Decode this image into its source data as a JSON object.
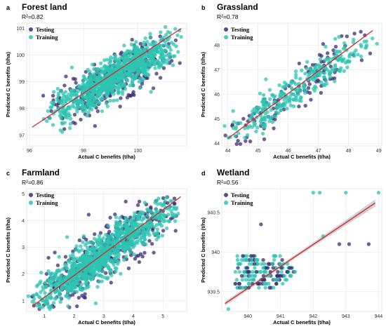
{
  "colors": {
    "testing": "#3b2e73",
    "training": "#2ec4b2",
    "fit_line": "#d62728",
    "band": "#a9a9a9",
    "grid": "#e6e6e6"
  },
  "legend": [
    "Testing",
    "Training"
  ],
  "chart_data": [
    {
      "type": "scatter",
      "panel": "a",
      "title": "Forest land",
      "r2": "R²=0.82",
      "xlabel": "Actual C benefits (t/ha)",
      "ylabel": "Predicted C benefits (t/ha)",
      "xlim": [
        95.9,
        101.8
      ],
      "ylim": [
        96.6,
        101.2
      ],
      "xticks": [
        96,
        98,
        100
      ],
      "yticks": [
        97,
        98,
        99,
        100,
        101
      ],
      "fit": [
        [
          96.1,
          97.3
        ],
        [
          101.6,
          101.0
        ]
      ],
      "center": [
        [
          97.0,
          97.9
        ],
        [
          101.2,
          100.4
        ]
      ],
      "spread": 0.38,
      "n_train": 900,
      "n_test": 320,
      "series": [
        {
          "name": "Testing"
        },
        {
          "name": "Training"
        }
      ]
    },
    {
      "type": "scatter",
      "panel": "b",
      "title": "Grassland",
      "r2": "R²=0.78",
      "xlabel": "Actual C benefits (t/ha)",
      "ylabel": "Predicted C benefits (t/ha)",
      "xlim": [
        43.8,
        49.1
      ],
      "ylim": [
        43.9,
        48.9
      ],
      "xticks": [
        44,
        45,
        46,
        47,
        48,
        49
      ],
      "yticks": [
        44,
        45,
        46,
        47,
        48
      ],
      "fit": [
        [
          44.0,
          44.2
        ],
        [
          48.8,
          48.6
        ]
      ],
      "center": [
        [
          44.0,
          44.2
        ],
        [
          48.6,
          48.3
        ]
      ],
      "spread": 0.35,
      "n_train": 300,
      "n_test": 110,
      "series": [
        {
          "name": "Testing"
        },
        {
          "name": "Training"
        }
      ]
    },
    {
      "type": "scatter",
      "panel": "c",
      "title": "Farmland",
      "r2": "R²=0.86",
      "xlabel": "Actual C benefits (t/ha)",
      "ylabel": "Predicted C benefits (t/ha)",
      "xlim": [
        0.4,
        5.8
      ],
      "ylim": [
        0.6,
        5.2
      ],
      "xticks": [
        1,
        2,
        3,
        4,
        5
      ],
      "yticks": [
        1,
        2,
        3,
        4,
        5
      ],
      "fit": [
        [
          0.6,
          0.8
        ],
        [
          5.6,
          4.9
        ]
      ],
      "center": [
        [
          0.7,
          0.9
        ],
        [
          5.3,
          4.6
        ]
      ],
      "spread": 0.4,
      "n_train": 1000,
      "n_test": 380,
      "series": [
        {
          "name": "Testing"
        },
        {
          "name": "Training"
        }
      ]
    },
    {
      "type": "scatter",
      "panel": "d",
      "title": "Wetland",
      "r2": "R²=0.56",
      "xlabel": "Actual C benefits (t/ha)",
      "ylabel": "Predicted C benefits (t/ha)",
      "xlim": [
        939.2,
        944.1
      ],
      "ylim": [
        939.25,
        940.8
      ],
      "xticks": [
        940,
        941,
        942,
        943,
        944
      ],
      "yticks": [
        939.5,
        940.0,
        940.5
      ],
      "fit": [
        [
          939.3,
          939.35
        ],
        [
          943.9,
          940.62
        ]
      ],
      "series": [
        {
          "name": "Testing",
          "points": [
            [
              940.1,
              939.95
            ],
            [
              940.2,
              939.85
            ],
            [
              940.4,
              940.35
            ],
            [
              940.3,
              939.6
            ],
            [
              940.6,
              939.8
            ],
            [
              940.9,
              939.7
            ],
            [
              943.1,
              940.1
            ],
            [
              943.7,
              940.1
            ],
            [
              942.8,
              940.1
            ],
            [
              941.2,
              939.75
            ],
            [
              940.5,
              939.65
            ],
            [
              940.0,
              939.75
            ]
          ]
        },
        {
          "name": "Training",
          "points": [
            [
              942.0,
              940.75
            ],
            [
              942.2,
              940.75
            ],
            [
              943.0,
              940.75
            ],
            [
              944.0,
              940.75
            ],
            [
              942.3,
              940.2
            ],
            [
              939.4,
              939.28
            ]
          ]
        }
      ]
    }
  ]
}
